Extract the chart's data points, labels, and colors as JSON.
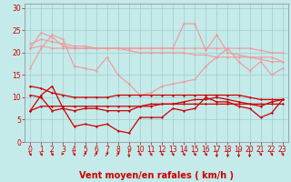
{
  "x": [
    0,
    1,
    2,
    3,
    4,
    5,
    6,
    7,
    8,
    9,
    10,
    11,
    12,
    13,
    14,
    15,
    16,
    17,
    18,
    19,
    20,
    21,
    22,
    23
  ],
  "line1_light": [
    16.5,
    21,
    24,
    23,
    17,
    16.5,
    16,
    19,
    15,
    13,
    10.5,
    11,
    12.5,
    13,
    13.5,
    14,
    17,
    19,
    21,
    18,
    16,
    18,
    15,
    16.5
  ],
  "line2_light": [
    21,
    24.5,
    23.5,
    21.5,
    21,
    21,
    21,
    21,
    21,
    20.5,
    20,
    20,
    20,
    20,
    20,
    19.5,
    19.5,
    19,
    19,
    19,
    19,
    18.5,
    18,
    18
  ],
  "line3_light": [
    22,
    23,
    22.5,
    22,
    21.5,
    21.5,
    21,
    21,
    21,
    21,
    21,
    21,
    21,
    21,
    26.5,
    26.5,
    20.5,
    24,
    20,
    19.5,
    19,
    19,
    19,
    18
  ],
  "line4_light": [
    21,
    21.5,
    21,
    21,
    21,
    21,
    21,
    21,
    21,
    21,
    21,
    21,
    21,
    21,
    21,
    21,
    21,
    21,
    21,
    21,
    21,
    20.5,
    20,
    20
  ],
  "line1_dark": [
    7,
    10.5,
    12.5,
    7.5,
    3.5,
    4,
    3.5,
    4,
    2.5,
    2,
    5.5,
    5.5,
    5.5,
    7.5,
    7,
    7.5,
    10,
    9,
    9,
    8,
    7.5,
    5.5,
    6.5,
    9.5
  ],
  "line2_dark": [
    10.5,
    10,
    7,
    7.5,
    7,
    7.5,
    7.5,
    7,
    7,
    7,
    8,
    8,
    8.5,
    8.5,
    9,
    9.5,
    9.5,
    10,
    9.5,
    9,
    8.5,
    8,
    9,
    9.5
  ],
  "line3_dark": [
    12.5,
    12,
    11,
    10.5,
    10,
    10,
    10,
    10,
    10.5,
    10.5,
    10.5,
    10.5,
    10.5,
    10.5,
    10.5,
    10.5,
    10.5,
    10.5,
    10.5,
    10.5,
    10,
    9.5,
    9.5,
    9.5
  ],
  "line4_dark": [
    7,
    8,
    8,
    8,
    8,
    8,
    8,
    8,
    8,
    8,
    8,
    8.5,
    8.5,
    8.5,
    8.5,
    8.5,
    8.5,
    8.5,
    8.5,
    8.5,
    8.5,
    8.5,
    8.5,
    8.5
  ],
  "arrow_dirs": [
    45,
    45,
    45,
    90,
    45,
    135,
    135,
    135,
    135,
    0,
    45,
    45,
    45,
    45,
    45,
    45,
    45,
    0,
    0,
    0,
    0,
    45,
    45,
    45
  ],
  "color_light": "#f09898",
  "color_dark": "#cc0000",
  "bg_color": "#c5eaea",
  "grid_color": "#a0cccc",
  "xlabel": "Vent moyen/en rafales ( km/h )",
  "xlabel_color": "#cc0000",
  "xlabel_fontsize": 7,
  "yticks": [
    0,
    5,
    10,
    15,
    20,
    25,
    30
  ],
  "xticks": [
    0,
    1,
    2,
    3,
    4,
    5,
    6,
    7,
    8,
    9,
    10,
    11,
    12,
    13,
    14,
    15,
    16,
    17,
    18,
    19,
    20,
    21,
    22,
    23
  ],
  "tick_fontsize": 5.5,
  "tick_color": "#cc0000",
  "ylim": [
    0,
    31
  ],
  "xlim": [
    -0.5,
    23.5
  ]
}
